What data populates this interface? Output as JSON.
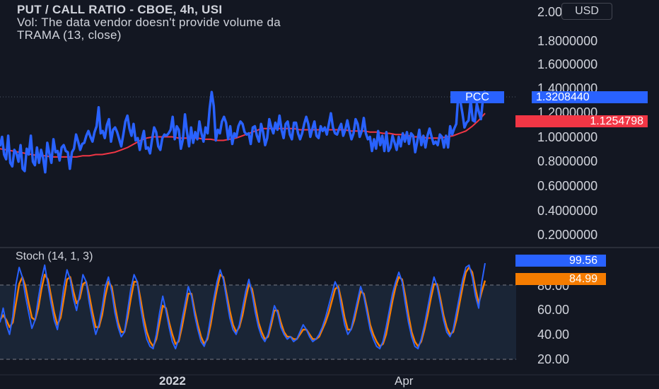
{
  "legend": {
    "title": "PUT / CALL RATIO - CBOE, 4h, USI",
    "volume_note": "Vol: The data vendor doesn't provide volume da",
    "trama": "TRAMA (13, close)"
  },
  "currency_button": "USD",
  "stoch_legend": "Stoch (14, 1, 3)",
  "price_axis": {
    "ticks": [
      "2.0000000",
      "1.8000000",
      "1.6000000",
      "1.4000000",
      "1.2000000",
      "1.0000000",
      "0.8000000",
      "0.6000000",
      "0.4000000",
      "0.2000000"
    ],
    "pcc_label": "PCC",
    "last_value": "1.3208440",
    "trama_value": "1.1254798"
  },
  "stoch_axis": {
    "ticks": [
      "80.00",
      "60.00",
      "40.00",
      "20.00"
    ],
    "k_value": "99.56",
    "d_value": "84.99"
  },
  "time_axis": {
    "labels": [
      "2022",
      "Apr"
    ]
  },
  "colors": {
    "price_line": "#2962ff",
    "trama_line": "#f23645",
    "stoch_k": "#2962ff",
    "stoch_d": "#f57c00",
    "background": "#131722"
  },
  "chart_data": [
    {
      "type": "line",
      "title": "PUT / CALL RATIO - CBOE, 4h, USI",
      "x_labels": [
        "2022",
        "Apr"
      ],
      "ylim": [
        0.1,
        2.0
      ],
      "series": [
        {
          "name": "PCC",
          "values": [
            0.85,
            0.93,
            0.78,
            0.74,
            0.94,
            0.71,
            0.68,
            0.82,
            0.79,
            0.72,
            0.86,
            0.66,
            0.64,
            0.83,
            0.78,
            0.94,
            0.72,
            0.69,
            0.84,
            0.71,
            0.82,
            0.75,
            0.63,
            0.88,
            0.79,
            0.71,
            0.91,
            0.8,
            0.81,
            0.73,
            0.84,
            0.86,
            0.81,
            0.8,
            0.66,
            0.8,
            0.83,
            0.95,
            0.89,
            0.82,
            0.87,
            0.88,
            0.94,
            0.98,
            0.93,
            0.89,
            0.97,
            1.02,
            1.18,
            0.96,
            0.98,
            0.92,
            1.03,
            1.08,
            0.89,
            0.99,
            1.01,
            0.97,
            0.91,
            0.85,
            0.95,
            1.06,
            1.11,
            1.0,
            0.94,
            1.04,
            0.9,
            0.92,
            0.82,
            0.91,
            0.98,
            0.83,
            0.84,
            0.79,
            0.91,
            1.01,
            0.97,
            0.85,
            0.82,
            0.92,
            0.95,
            0.94,
            0.96,
            0.99,
            1.1,
            0.91,
            1.02,
            0.99,
            0.83,
            0.91,
            1.12,
            0.97,
            0.85,
            1.01,
            0.88,
            0.97,
            0.91,
            1.06,
            0.96,
            0.89,
            1.01,
            0.96,
            1.17,
            1.31,
            1.19,
            0.9,
            0.99,
            0.96,
            1.06,
            1.1,
            1.05,
            0.91,
            1.02,
            0.87,
            0.96,
            0.93,
            1.02,
            1.06,
            1.04,
            0.97,
            0.95,
            0.96,
            0.87,
            1.01,
            1.02,
            0.94,
            0.89,
            1.04,
            0.97,
            0.86,
            0.92,
            1.08,
            1.01,
            0.96,
            1.05,
            0.99,
            1.11,
            0.99,
            0.92,
            1.04,
            1.06,
            0.95,
            0.91,
            1.05,
            1.05,
            0.96,
            0.91,
            0.96,
            1.04,
            1.1,
            1.04,
            0.93,
            1.0,
            1.06,
            0.94,
            0.92,
            1.02,
            0.98,
            1.01,
            0.95,
            1.04,
            1.13,
            1.01,
            0.96,
            0.95,
            1.0,
            1.04,
            0.94,
            0.99,
            1.07,
            0.98,
            0.91,
            0.96,
            1.08,
            1.04,
            0.93,
            0.98,
            1.09,
            0.96,
            0.91,
            0.93,
            0.81,
            0.91,
            0.83,
            0.98,
            0.86,
            0.94,
            0.81,
            0.97,
            0.81,
            0.84,
            0.94,
            0.88,
            0.82,
            0.93,
            0.85,
            0.96,
            0.89,
            0.97,
            0.87,
            0.96,
            0.94,
            0.8,
            0.89,
            0.99,
            0.86,
            0.94,
            0.84,
            0.94,
            1.0,
            0.93,
            0.87,
            0.89,
            0.86,
            0.95,
            0.93,
            0.84,
            0.94,
            0.84,
            1.02,
            0.95,
            1.0,
            1.04,
            1.29,
            1.23,
            1.13,
            1.01,
            1.05,
            1.07,
            1.24,
            1.07,
            1.06,
            1.21,
            1.14,
            1.08,
            1.26,
            1.32
          ]
        },
        {
          "name": "TRAMA",
          "values": [
            0.83,
            0.82,
            0.81,
            0.8,
            0.79,
            0.78,
            0.77,
            0.77,
            0.76,
            0.76,
            0.76,
            0.76,
            0.76,
            0.77,
            0.77,
            0.78,
            0.78,
            0.79,
            0.8,
            0.82,
            0.84,
            0.87,
            0.9,
            0.92,
            0.93,
            0.93,
            0.93,
            0.93,
            0.92,
            0.92,
            0.92,
            0.92,
            0.91,
            0.91,
            0.9,
            0.9,
            0.91,
            0.92,
            0.94,
            0.96,
            0.98,
            1.0,
            1.0,
            1.0,
            1.0,
            1.0,
            1.0,
            0.99,
            0.99,
            0.99,
            0.99,
            0.99,
            0.99,
            0.99,
            0.99,
            0.98,
            0.98,
            0.98,
            0.97,
            0.97,
            0.96,
            0.96,
            0.95,
            0.95,
            0.94,
            0.93,
            0.93,
            0.92,
            0.92,
            0.92,
            0.93,
            0.94,
            0.96,
            0.98,
            1.02,
            1.07,
            1.13
          ]
        }
      ]
    },
    {
      "type": "line",
      "title": "Stoch (14, 1, 3)",
      "x_labels": [
        "2022",
        "Apr"
      ],
      "ylim": [
        15,
        102
      ],
      "bands": [
        20,
        80
      ],
      "series": [
        {
          "name": "%K",
          "values": [
            50,
            62,
            48,
            40,
            55,
            82,
            96,
            88,
            72,
            58,
            45,
            52,
            70,
            86,
            98,
            82,
            66,
            52,
            44,
            60,
            80,
            94,
            86,
            70,
            60,
            74,
            90,
            84,
            66,
            52,
            40,
            48,
            62,
            80,
            88,
            76,
            58,
            46,
            38,
            42,
            60,
            78,
            90,
            84,
            64,
            48,
            36,
            30,
            28,
            40,
            58,
            72,
            60,
            46,
            34,
            28,
            36,
            52,
            66,
            80,
            72,
            56,
            44,
            34,
            30,
            38,
            54,
            70,
            84,
            94,
            86,
            70,
            54,
            44,
            40,
            48,
            62,
            76,
            86,
            74,
            58,
            46,
            38,
            34,
            40,
            52,
            64,
            58,
            46,
            40,
            36,
            38,
            34,
            36,
            42,
            48,
            44,
            38,
            34,
            36,
            40,
            46,
            54,
            64,
            74,
            84,
            78,
            62,
            48,
            40,
            44,
            56,
            68,
            80,
            72,
            58,
            44,
            36,
            30,
            28,
            34,
            46,
            60,
            74,
            84,
            92,
            84,
            66,
            50,
            38,
            30,
            28,
            36,
            48,
            62,
            76,
            88,
            80,
            66,
            52,
            42,
            38,
            44,
            58,
            72,
            86,
            96,
            98,
            88,
            72,
            62,
            84,
            99.56
          ]
        },
        {
          "name": "%D",
          "values": [
            52,
            56,
            52,
            46,
            50,
            66,
            82,
            88,
            80,
            66,
            54,
            52,
            62,
            78,
            90,
            86,
            72,
            58,
            48,
            54,
            70,
            86,
            88,
            76,
            66,
            70,
            82,
            84,
            72,
            58,
            46,
            46,
            56,
            72,
            84,
            80,
            64,
            50,
            42,
            42,
            54,
            70,
            84,
            84,
            70,
            54,
            42,
            34,
            30,
            36,
            50,
            64,
            62,
            50,
            40,
            32,
            34,
            46,
            60,
            74,
            74,
            60,
            48,
            38,
            32,
            36,
            48,
            64,
            78,
            90,
            88,
            74,
            60,
            48,
            42,
            46,
            56,
            70,
            82,
            78,
            64,
            50,
            42,
            36,
            38,
            48,
            60,
            60,
            50,
            42,
            38,
            38,
            36,
            36,
            40,
            44,
            44,
            40,
            36,
            36,
            38,
            44,
            50,
            58,
            68,
            78,
            80,
            68,
            54,
            44,
            44,
            52,
            64,
            76,
            74,
            62,
            48,
            40,
            34,
            30,
            32,
            40,
            54,
            68,
            80,
            88,
            86,
            72,
            56,
            42,
            34,
            30,
            34,
            44,
            56,
            70,
            82,
            82,
            70,
            56,
            46,
            40,
            42,
            52,
            66,
            80,
            92,
            96,
            92,
            78,
            66,
            76,
            84.99
          ]
        }
      ]
    }
  ]
}
